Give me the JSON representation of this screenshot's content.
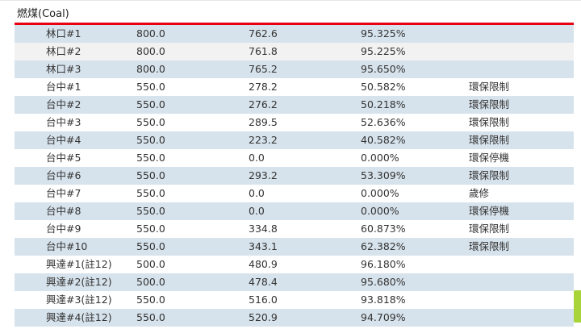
{
  "section": {
    "title": "燃煤(Coal)"
  },
  "colors": {
    "accent_rule": "#e60012",
    "row_blue": "#d7e3ec",
    "row_gray": "#f2f2f2",
    "scroll_thumb": "#a8d43a"
  },
  "rows": [
    {
      "name": "林口#1",
      "capacity": "800.0",
      "generation": "762.6",
      "ratio": "95.325%",
      "note": "",
      "shade": "blue"
    },
    {
      "name": "林口#2",
      "capacity": "800.0",
      "generation": "761.8",
      "ratio": "95.225%",
      "note": "",
      "shade": "gray"
    },
    {
      "name": "林口#3",
      "capacity": "800.0",
      "generation": "765.2",
      "ratio": "95.650%",
      "note": "",
      "shade": "blue"
    },
    {
      "name": "台中#1",
      "capacity": "550.0",
      "generation": "278.2",
      "ratio": "50.582%",
      "note": "環保限制",
      "shade": "white"
    },
    {
      "name": "台中#2",
      "capacity": "550.0",
      "generation": "276.2",
      "ratio": "50.218%",
      "note": "環保限制",
      "shade": "blue"
    },
    {
      "name": "台中#3",
      "capacity": "550.0",
      "generation": "289.5",
      "ratio": "52.636%",
      "note": "環保限制",
      "shade": "white"
    },
    {
      "name": "台中#4",
      "capacity": "550.0",
      "generation": "223.2",
      "ratio": "40.582%",
      "note": "環保限制",
      "shade": "blue"
    },
    {
      "name": "台中#5",
      "capacity": "550.0",
      "generation": "0.0",
      "ratio": "0.000%",
      "note": "環保停機",
      "shade": "white"
    },
    {
      "name": "台中#6",
      "capacity": "550.0",
      "generation": "293.2",
      "ratio": "53.309%",
      "note": "環保限制",
      "shade": "blue"
    },
    {
      "name": "台中#7",
      "capacity": "550.0",
      "generation": "0.0",
      "ratio": "0.000%",
      "note": "歲修",
      "shade": "white"
    },
    {
      "name": "台中#8",
      "capacity": "550.0",
      "generation": "0.0",
      "ratio": "0.000%",
      "note": "環保停機",
      "shade": "blue"
    },
    {
      "name": "台中#9",
      "capacity": "550.0",
      "generation": "334.8",
      "ratio": "60.873%",
      "note": "環保限制",
      "shade": "white"
    },
    {
      "name": "台中#10",
      "capacity": "550.0",
      "generation": "343.1",
      "ratio": "62.382%",
      "note": "環保限制",
      "shade": "blue"
    },
    {
      "name": "興達#1(註12)",
      "capacity": "500.0",
      "generation": "480.9",
      "ratio": "96.180%",
      "note": "",
      "shade": "white"
    },
    {
      "name": "興達#2(註12)",
      "capacity": "500.0",
      "generation": "478.4",
      "ratio": "95.680%",
      "note": "",
      "shade": "blue"
    },
    {
      "name": "興達#3(註12)",
      "capacity": "550.0",
      "generation": "516.0",
      "ratio": "93.818%",
      "note": "",
      "shade": "white"
    },
    {
      "name": "興達#4(註12)",
      "capacity": "550.0",
      "generation": "520.9",
      "ratio": "94.709%",
      "note": "",
      "shade": "blue"
    }
  ]
}
